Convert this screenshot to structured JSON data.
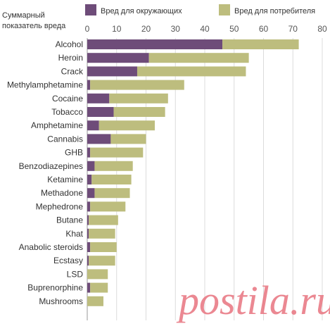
{
  "chart_data": {
    "type": "bar",
    "orientation": "horizontal",
    "stacked": true,
    "axis_title_lines": [
      "Суммарный",
      "показатель вреда"
    ],
    "xlim": [
      0,
      80
    ],
    "xticks": [
      0,
      10,
      20,
      30,
      40,
      50,
      60,
      70,
      80
    ],
    "grid": true,
    "legend_position": "top",
    "categories": [
      "Alcohol",
      "Heroin",
      "Crack",
      "Methylamphetamine",
      "Cocaine",
      "Tobacco",
      "Amphetamine",
      "Cannabis",
      "GHB",
      "Benzodiazepines",
      "Ketamine",
      "Methadone",
      "Mephedrone",
      "Butane",
      "Khat",
      "Anabolic steroids",
      "Ecstasy",
      "LSD",
      "Buprenorphine",
      "Mushrooms"
    ],
    "series": [
      {
        "name": "Вред для окружающих",
        "color": "#6e4c79",
        "values": [
          46,
          21,
          17,
          1,
          7.5,
          9,
          4,
          8,
          1,
          2.5,
          1.5,
          2.5,
          1,
          0.5,
          0.5,
          1,
          0.5,
          0,
          1,
          0
        ]
      },
      {
        "name": "Вред для потребителя",
        "color": "#bdbd7e",
        "values": [
          26,
          34,
          37,
          32,
          20,
          17.5,
          19,
          12,
          18,
          13,
          13.5,
          12,
          12,
          10,
          9,
          9,
          9,
          7,
          6,
          5.5
        ]
      }
    ]
  },
  "watermark": "postila.ru"
}
